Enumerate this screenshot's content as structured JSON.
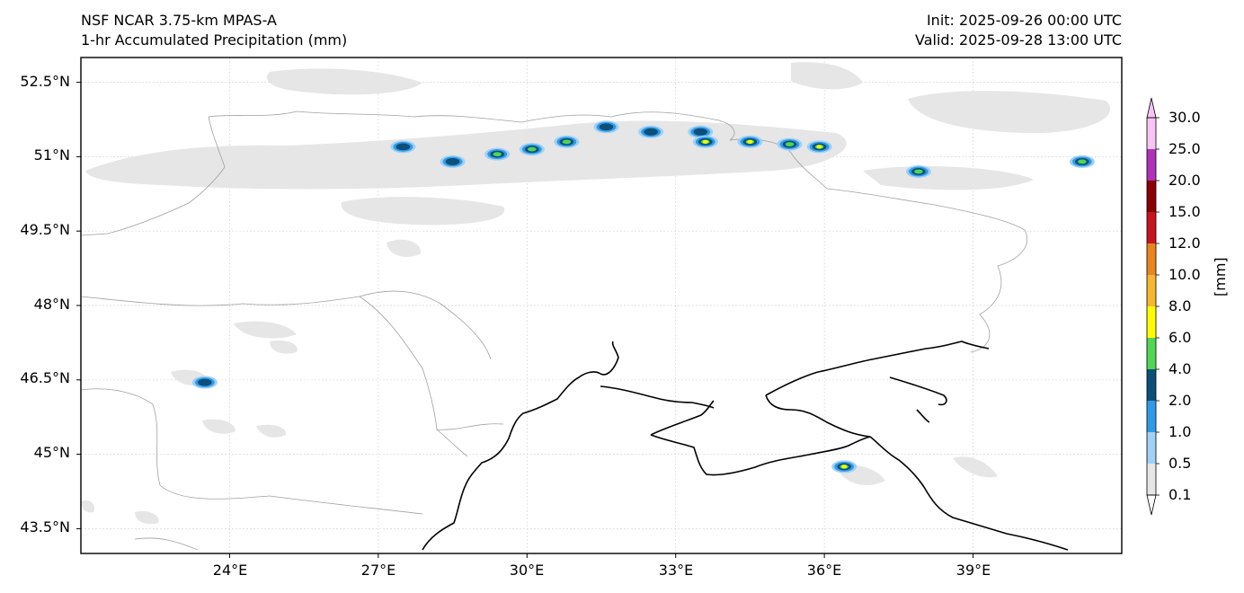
{
  "header": {
    "model": "NSF NCAR 3.75-km MPAS-A",
    "field": "1-hr Accumulated Precipitation (mm)",
    "init": "Init: 2025-09-26 00:00 UTC",
    "valid": "Valid: 2025-09-28 13:00 UTC"
  },
  "axes": {
    "lat_labels": [
      "52.5°N",
      "51°N",
      "49.5°N",
      "48°N",
      "46.5°N",
      "45°N",
      "43.5°N"
    ],
    "lon_labels": [
      "24°E",
      "27°E",
      "30°E",
      "33°E",
      "36°E",
      "39°E"
    ]
  },
  "colorbar": {
    "unit_label": "[mm]",
    "levels": [
      "0.1",
      "0.5",
      "1.0",
      "2.0",
      "4.0",
      "6.0",
      "8.0",
      "10.0",
      "12.0",
      "15.0",
      "20.0",
      "25.0",
      "30.0"
    ],
    "colors": [
      "#e6e6e6",
      "#9fd0f5",
      "#2f9be8",
      "#0c4f7a",
      "#4fd655",
      "#fffb00",
      "#f5b730",
      "#e8861e",
      "#c8141e",
      "#8b0000",
      "#b030b8",
      "#f7c4f5"
    ]
  },
  "chart_data": {
    "type": "map",
    "title": "1-hr Accumulated Precipitation (mm)",
    "projection": "PlateCarree",
    "extent_lon": [
      21,
      42
    ],
    "extent_lat": [
      43,
      53
    ],
    "gridlines": true,
    "features": [
      "coastline",
      "country borders"
    ],
    "precip_cells": [
      {
        "lon": 27.5,
        "lat": 51.2,
        "intensity_mm": 2.0
      },
      {
        "lon": 28.5,
        "lat": 50.9,
        "intensity_mm": 2.0
      },
      {
        "lon": 29.4,
        "lat": 51.05,
        "intensity_mm": 4.0
      },
      {
        "lon": 30.1,
        "lat": 51.15,
        "intensity_mm": 4.0
      },
      {
        "lon": 30.8,
        "lat": 51.3,
        "intensity_mm": 4.0
      },
      {
        "lon": 31.6,
        "lat": 51.6,
        "intensity_mm": 2.0
      },
      {
        "lon": 32.5,
        "lat": 51.5,
        "intensity_mm": 2.0
      },
      {
        "lon": 33.5,
        "lat": 51.5,
        "intensity_mm": 2.0
      },
      {
        "lon": 33.6,
        "lat": 51.3,
        "intensity_mm": 6.0
      },
      {
        "lon": 34.5,
        "lat": 51.3,
        "intensity_mm": 6.0
      },
      {
        "lon": 35.3,
        "lat": 51.25,
        "intensity_mm": 4.0
      },
      {
        "lon": 35.9,
        "lat": 51.2,
        "intensity_mm": 6.0
      },
      {
        "lon": 37.9,
        "lat": 50.7,
        "intensity_mm": 4.0
      },
      {
        "lon": 41.2,
        "lat": 50.9,
        "intensity_mm": 4.0
      },
      {
        "lon": 23.5,
        "lat": 46.45,
        "intensity_mm": 2.0
      },
      {
        "lon": 36.4,
        "lat": 44.75,
        "intensity_mm": 6.0
      }
    ]
  }
}
